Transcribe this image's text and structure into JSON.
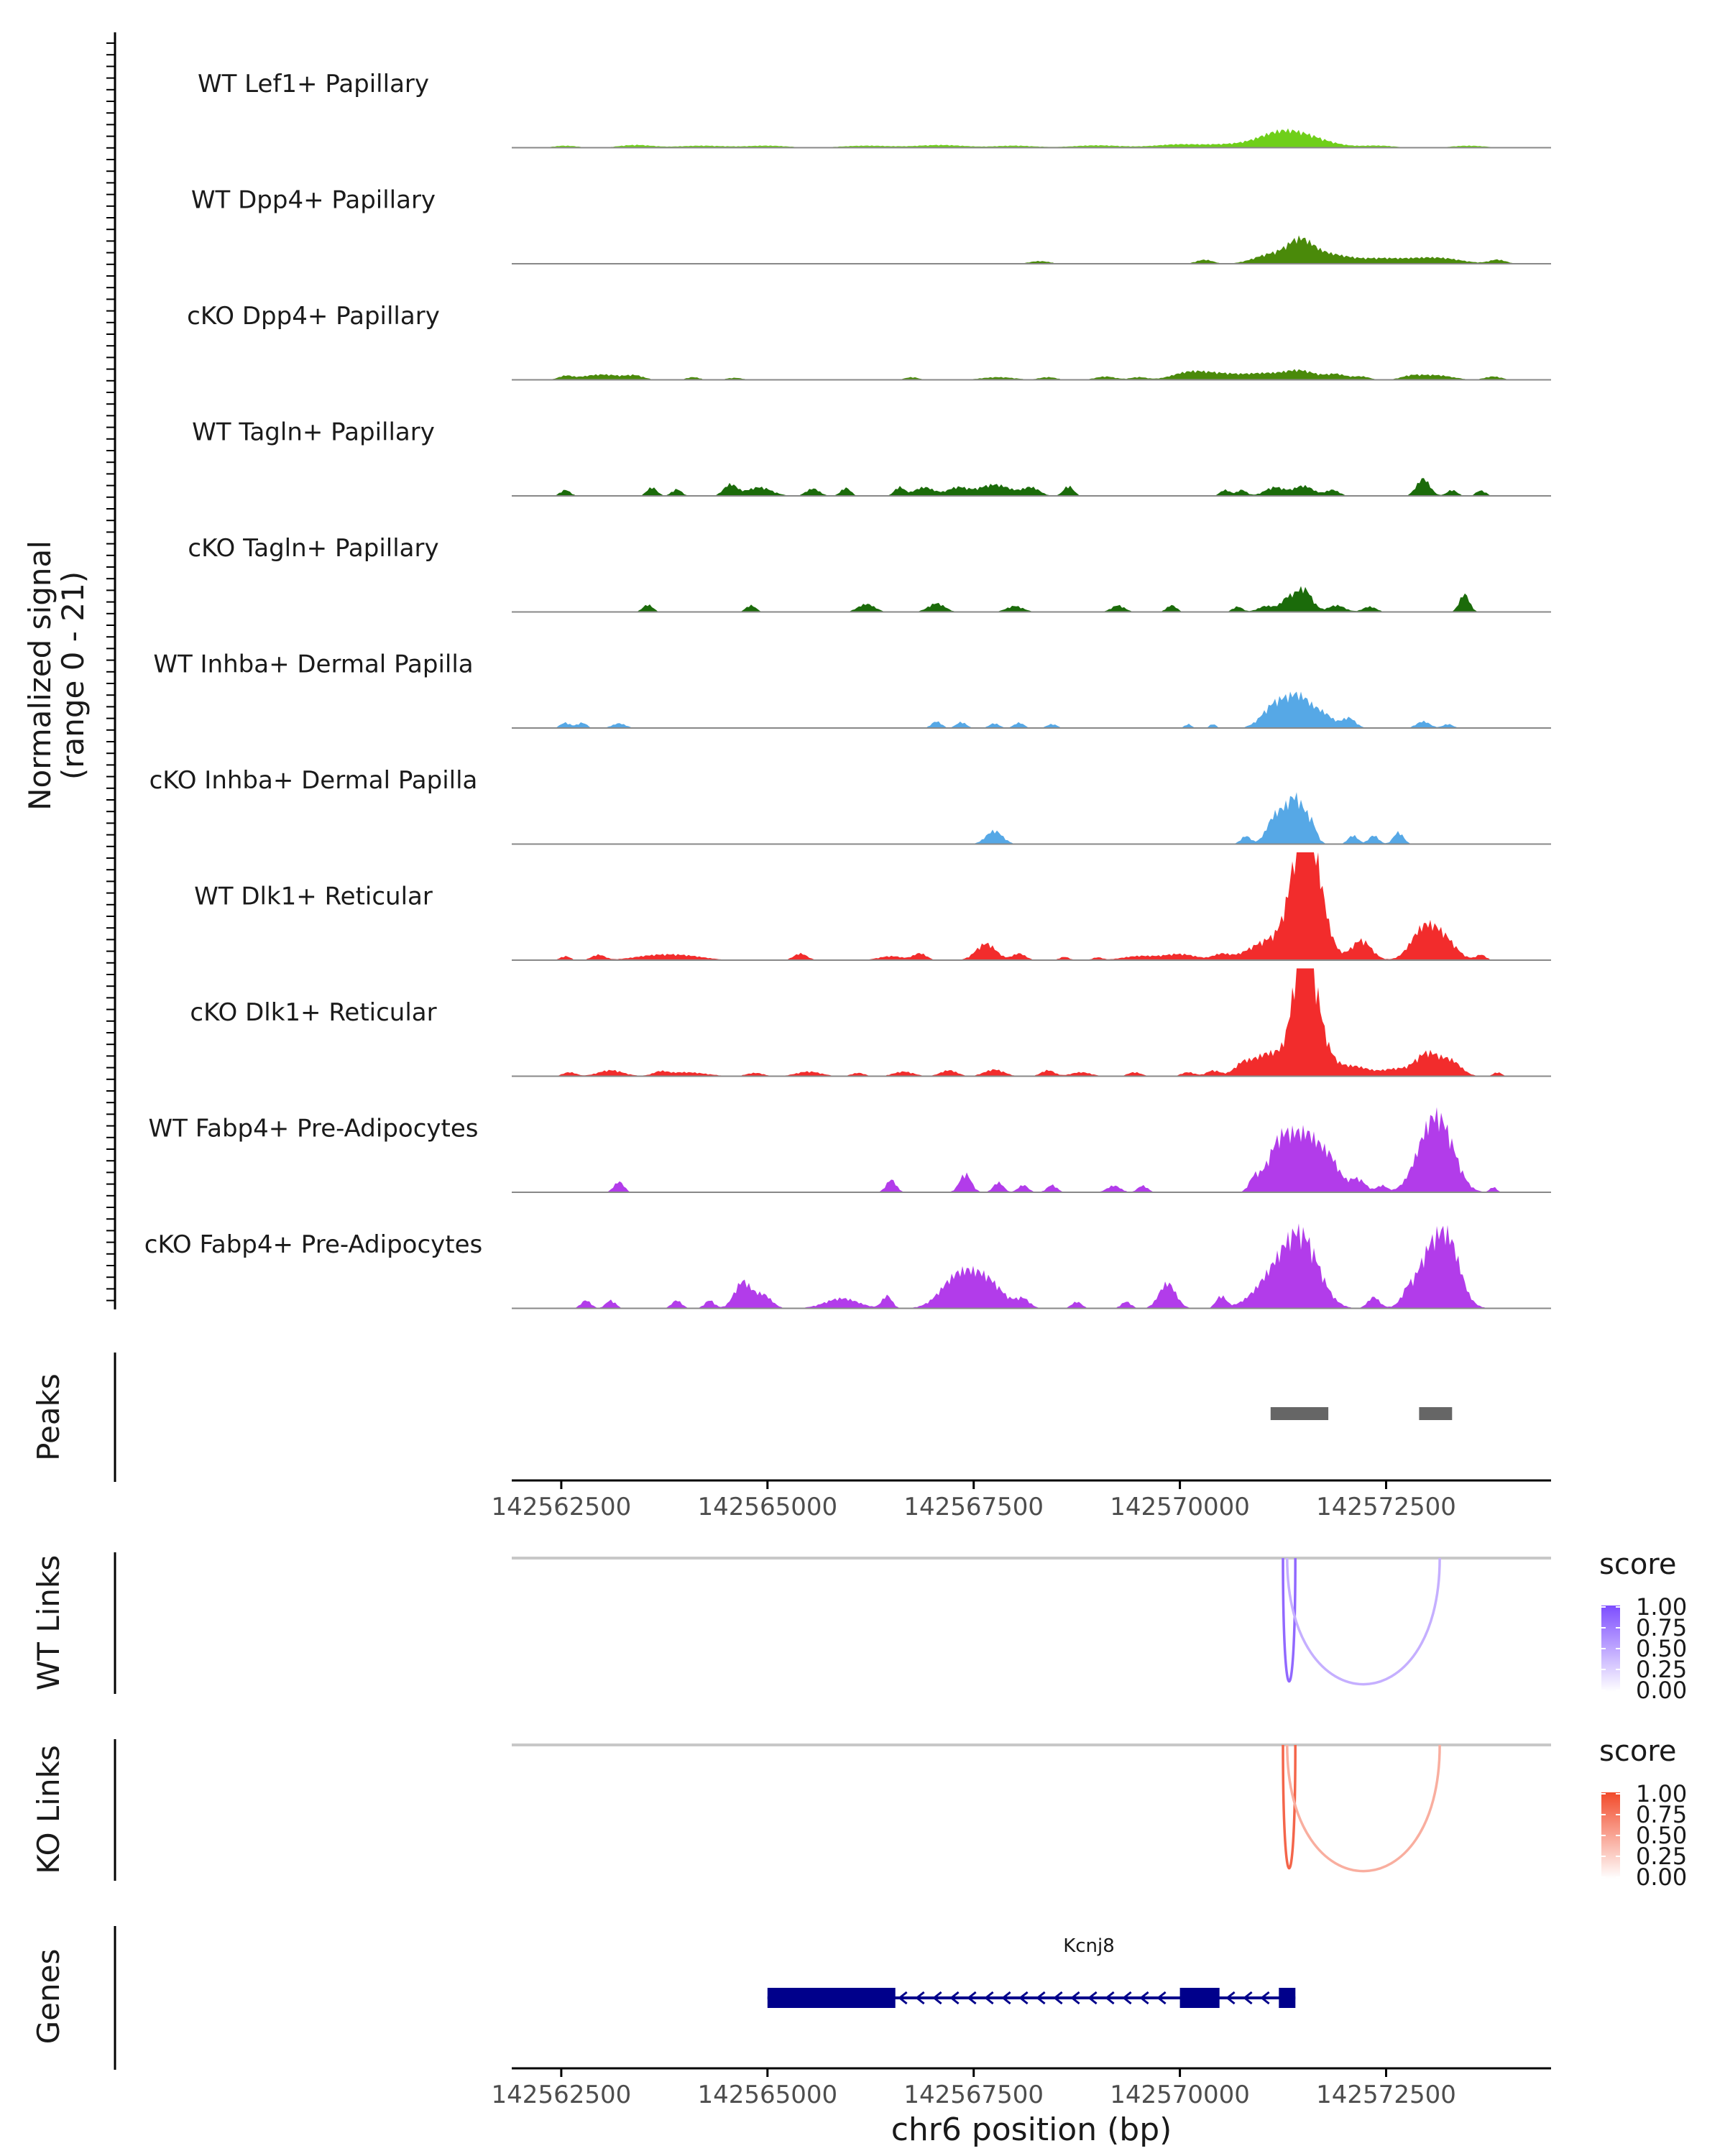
{
  "chart_data": {
    "type": "area",
    "region": {
      "chrom": "chr6",
      "start": 142561900,
      "end": 142574500
    },
    "signal_ylabel_line1": "Normalized signal",
    "signal_ylabel_line2": "(range 0 - 21)",
    "y_range": [
      0,
      21
    ],
    "tracks": [
      {
        "label": "WT Lef1+ Papillary",
        "color": "#6fcf1a",
        "peaks": [
          [
            142562550,
            140,
            0.3
          ],
          [
            142563400,
            200,
            0.4
          ],
          [
            142564200,
            300,
            0.3
          ],
          [
            142565000,
            250,
            0.3
          ],
          [
            142566200,
            300,
            0.3
          ],
          [
            142567100,
            300,
            0.4
          ],
          [
            142568000,
            250,
            0.3
          ],
          [
            142569000,
            300,
            0.35
          ],
          [
            142570000,
            300,
            0.5
          ],
          [
            142570600,
            250,
            0.4
          ],
          [
            142571150,
            250,
            1.2
          ],
          [
            142571450,
            320,
            1.8
          ],
          [
            142572400,
            200,
            0.3
          ],
          [
            142573500,
            200,
            0.3
          ]
        ]
      },
      {
        "label": "WT Dpp4+ Papillary",
        "color": "#4a8a0a",
        "peaks": [
          [
            142568300,
            120,
            0.4
          ],
          [
            142570300,
            100,
            0.6
          ],
          [
            142571100,
            200,
            1.4
          ],
          [
            142571450,
            150,
            3.0
          ],
          [
            142571700,
            200,
            1.2
          ],
          [
            142572000,
            200,
            0.7
          ],
          [
            142572400,
            200,
            0.6
          ],
          [
            142572800,
            250,
            0.6
          ],
          [
            142573200,
            250,
            0.7
          ],
          [
            142573850,
            100,
            0.6
          ]
        ]
      },
      {
        "label": "cKO Dpp4+ Papillary",
        "color": "#4a8a0a",
        "peaks": [
          [
            142562550,
            80,
            0.5
          ],
          [
            142563000,
            250,
            0.8
          ],
          [
            142563400,
            100,
            0.5
          ],
          [
            142564100,
            80,
            0.4
          ],
          [
            142564600,
            100,
            0.3
          ],
          [
            142566750,
            80,
            0.4
          ],
          [
            142567800,
            200,
            0.4
          ],
          [
            142568400,
            100,
            0.4
          ],
          [
            142569100,
            120,
            0.5
          ],
          [
            142569500,
            100,
            0.4
          ],
          [
            142570100,
            200,
            1.0
          ],
          [
            142570500,
            250,
            0.9
          ],
          [
            142571000,
            200,
            0.8
          ],
          [
            142571450,
            200,
            1.4
          ],
          [
            142571900,
            120,
            0.8
          ],
          [
            142572200,
            100,
            0.5
          ],
          [
            142572800,
            120,
            0.5
          ],
          [
            142573100,
            200,
            0.7
          ],
          [
            142573800,
            100,
            0.5
          ]
        ]
      },
      {
        "label": "WT Tagln+ Papillary",
        "color": "#1b6b0a",
        "peaks": [
          [
            142562550,
            60,
            0.9
          ],
          [
            142563600,
            60,
            1.3
          ],
          [
            142563900,
            60,
            1.0
          ],
          [
            142564550,
            80,
            1.7
          ],
          [
            142564900,
            150,
            1.3
          ],
          [
            142565550,
            80,
            1.1
          ],
          [
            142565950,
            60,
            1.2
          ],
          [
            142566600,
            60,
            1.3
          ],
          [
            142566900,
            120,
            1.3
          ],
          [
            142567300,
            120,
            1.2
          ],
          [
            142567750,
            200,
            1.7
          ],
          [
            142568200,
            100,
            1.2
          ],
          [
            142568650,
            60,
            1.5
          ],
          [
            142570550,
            60,
            0.9
          ],
          [
            142570750,
            60,
            0.9
          ],
          [
            142571150,
            120,
            1.3
          ],
          [
            142571500,
            120,
            1.5
          ],
          [
            142571850,
            80,
            0.9
          ],
          [
            142572950,
            80,
            2.6
          ],
          [
            142573300,
            60,
            0.9
          ],
          [
            142573650,
            60,
            0.8
          ]
        ]
      },
      {
        "label": "cKO Tagln+ Papillary",
        "color": "#1b6b0a",
        "peaks": [
          [
            142563550,
            60,
            1.1
          ],
          [
            142564800,
            60,
            1.0
          ],
          [
            142566200,
            100,
            1.2
          ],
          [
            142567050,
            100,
            1.3
          ],
          [
            142568000,
            100,
            0.9
          ],
          [
            142569250,
            80,
            1.0
          ],
          [
            142569900,
            60,
            1.0
          ],
          [
            142570700,
            60,
            0.8
          ],
          [
            142571050,
            100,
            0.9
          ],
          [
            142571300,
            80,
            1.8
          ],
          [
            142571500,
            100,
            3.5
          ],
          [
            142571900,
            100,
            1.0
          ],
          [
            142572300,
            80,
            0.8
          ],
          [
            142573450,
            60,
            2.7
          ]
        ]
      },
      {
        "label": "WT Inhba+ Dermal Papilla",
        "color": "#56a8e6",
        "peaks": [
          [
            142562550,
            60,
            0.8
          ],
          [
            142562750,
            60,
            0.8
          ],
          [
            142563200,
            80,
            0.7
          ],
          [
            142567050,
            60,
            1.0
          ],
          [
            142567350,
            60,
            0.9
          ],
          [
            142567750,
            60,
            0.7
          ],
          [
            142568050,
            60,
            0.8
          ],
          [
            142568450,
            60,
            0.6
          ],
          [
            142570100,
            40,
            0.6
          ],
          [
            142570400,
            40,
            0.6
          ],
          [
            142571150,
            150,
            3.4
          ],
          [
            142571450,
            150,
            4.5
          ],
          [
            142571750,
            120,
            1.8
          ],
          [
            142572050,
            80,
            1.5
          ],
          [
            142572950,
            80,
            1.0
          ],
          [
            142573250,
            60,
            0.6
          ]
        ]
      },
      {
        "label": "cKO Inhba+ Dermal Papilla",
        "color": "#56a8e6",
        "peaks": [
          [
            142567750,
            100,
            2.0
          ],
          [
            142570800,
            60,
            1.2
          ],
          [
            142571150,
            100,
            3.8
          ],
          [
            142571400,
            120,
            7.0
          ],
          [
            142571600,
            60,
            2.0
          ],
          [
            142572100,
            60,
            1.3
          ],
          [
            142572350,
            60,
            1.3
          ],
          [
            142572650,
            60,
            1.8
          ]
        ]
      },
      {
        "label": "WT Dlk1+ Reticular",
        "color": "#f22c2c",
        "peaks": [
          [
            142562550,
            60,
            0.6
          ],
          [
            142562950,
            80,
            0.8
          ],
          [
            142563600,
            250,
            0.6
          ],
          [
            142564000,
            250,
            0.6
          ],
          [
            142565400,
            80,
            1.0
          ],
          [
            142566500,
            150,
            0.6
          ],
          [
            142566850,
            80,
            1.0
          ],
          [
            142567650,
            120,
            2.5
          ],
          [
            142568050,
            80,
            1.0
          ],
          [
            142568600,
            60,
            0.5
          ],
          [
            142569000,
            60,
            0.4
          ],
          [
            142569500,
            200,
            0.6
          ],
          [
            142570000,
            200,
            0.9
          ],
          [
            142570500,
            100,
            0.8
          ],
          [
            142571100,
            250,
            3.0
          ],
          [
            142571500,
            150,
            17.0
          ],
          [
            142571650,
            150,
            6.0
          ],
          [
            142572200,
            120,
            3.0
          ],
          [
            142572950,
            150,
            4.5
          ],
          [
            142573200,
            150,
            3.0
          ],
          [
            142573650,
            60,
            0.8
          ]
        ]
      },
      {
        "label": "cKO Dlk1+ Reticular",
        "color": "#f22c2c",
        "peaks": [
          [
            142562600,
            80,
            0.6
          ],
          [
            142563100,
            150,
            0.9
          ],
          [
            142563700,
            80,
            0.5
          ],
          [
            142564000,
            250,
            0.6
          ],
          [
            142564850,
            100,
            0.5
          ],
          [
            142565500,
            150,
            0.7
          ],
          [
            142566100,
            80,
            0.5
          ],
          [
            142566650,
            120,
            0.7
          ],
          [
            142567200,
            100,
            0.9
          ],
          [
            142567750,
            120,
            1.0
          ],
          [
            142568400,
            80,
            0.9
          ],
          [
            142568800,
            120,
            0.6
          ],
          [
            142569450,
            80,
            0.6
          ],
          [
            142570100,
            80,
            0.6
          ],
          [
            142570400,
            80,
            0.8
          ],
          [
            142570750,
            80,
            0.9
          ],
          [
            142571100,
            250,
            3.5
          ],
          [
            142571500,
            120,
            17.5
          ],
          [
            142571650,
            150,
            6.0
          ],
          [
            142572100,
            200,
            1.5
          ],
          [
            142572600,
            150,
            1.0
          ],
          [
            142573000,
            150,
            3.5
          ],
          [
            142573300,
            120,
            2.0
          ],
          [
            142573850,
            50,
            0.6
          ]
        ]
      },
      {
        "label": "WT Fabp4+ Pre-Adipocytes",
        "color": "#b23cea",
        "peaks": [
          [
            142563200,
            60,
            1.6
          ],
          [
            142566500,
            60,
            1.9
          ],
          [
            142567400,
            70,
            2.8
          ],
          [
            142567800,
            60,
            1.5
          ],
          [
            142568100,
            60,
            1.1
          ],
          [
            142568450,
            60,
            1.1
          ],
          [
            142569200,
            80,
            1.0
          ],
          [
            142569550,
            60,
            1.0
          ],
          [
            142570900,
            60,
            1.8
          ],
          [
            142571200,
            150,
            6.5
          ],
          [
            142571550,
            200,
            8.5
          ],
          [
            142571850,
            100,
            2.5
          ],
          [
            142572150,
            100,
            2.0
          ],
          [
            142572450,
            60,
            1.0
          ],
          [
            142573050,
            180,
            9.5
          ],
          [
            142573250,
            150,
            4.0
          ],
          [
            142573800,
            40,
            0.8
          ]
        ]
      },
      {
        "label": "cKO Fabp4+ Pre-Adipocytes",
        "color": "#b23cea",
        "peaks": [
          [
            142562800,
            60,
            1.2
          ],
          [
            142563100,
            60,
            1.2
          ],
          [
            142563900,
            60,
            1.2
          ],
          [
            142564300,
            60,
            1.2
          ],
          [
            142564700,
            100,
            4.0
          ],
          [
            142564950,
            100,
            2.0
          ],
          [
            142565900,
            200,
            1.5
          ],
          [
            142566450,
            60,
            1.9
          ],
          [
            142567300,
            200,
            4.5
          ],
          [
            142567650,
            200,
            4.0
          ],
          [
            142568100,
            80,
            1.3
          ],
          [
            142568750,
            60,
            1.0
          ],
          [
            142569350,
            60,
            1.0
          ],
          [
            142569850,
            100,
            3.8
          ],
          [
            142570500,
            60,
            1.8
          ],
          [
            142571200,
            250,
            5.5
          ],
          [
            142571500,
            200,
            8.5
          ],
          [
            142572350,
            70,
            1.7
          ],
          [
            142572750,
            60,
            1.2
          ],
          [
            142573100,
            200,
            10.0
          ],
          [
            142573300,
            120,
            4.0
          ]
        ]
      }
    ],
    "peaks_label": "Peaks",
    "peaks_intervals": [
      [
        142571100,
        142571800
      ],
      [
        142572900,
        142573300
      ]
    ],
    "x_ticks": [
      142562500,
      142565000,
      142567500,
      142570000,
      142572500
    ],
    "x_tick_labels": [
      "142562500",
      "142565000",
      "142567500",
      "142570000",
      "142572500"
    ],
    "x_label": "chr6 position (bp)",
    "links": [
      {
        "label": "WT Links",
        "legend_title": "score",
        "color": "#7d4dff",
        "legend_ticks": [
          "1.00",
          "0.75",
          "0.50",
          "0.25",
          "0.00"
        ],
        "arcs": [
          {
            "start": 142571250,
            "end": 142571400,
            "score": 0.85
          },
          {
            "start": 142571300,
            "end": 142573150,
            "score": 0.45
          }
        ]
      },
      {
        "label": "KO Links",
        "legend_title": "score",
        "color": "#f24a2a",
        "legend_ticks": [
          "1.00",
          "0.75",
          "0.50",
          "0.25",
          "0.00"
        ],
        "arcs": [
          {
            "start": 142571250,
            "end": 142571400,
            "score": 0.85
          },
          {
            "start": 142571300,
            "end": 142573150,
            "score": 0.45
          }
        ]
      }
    ],
    "genes_label": "Genes",
    "gene": {
      "name": "Kcnj8",
      "strand": "-",
      "start": 142565000,
      "end": 142571400,
      "exons": [
        [
          142565000,
          142566550
        ],
        [
          142570000,
          142570480
        ],
        [
          142571200,
          142571400
        ]
      ],
      "color": "#00008b"
    }
  }
}
